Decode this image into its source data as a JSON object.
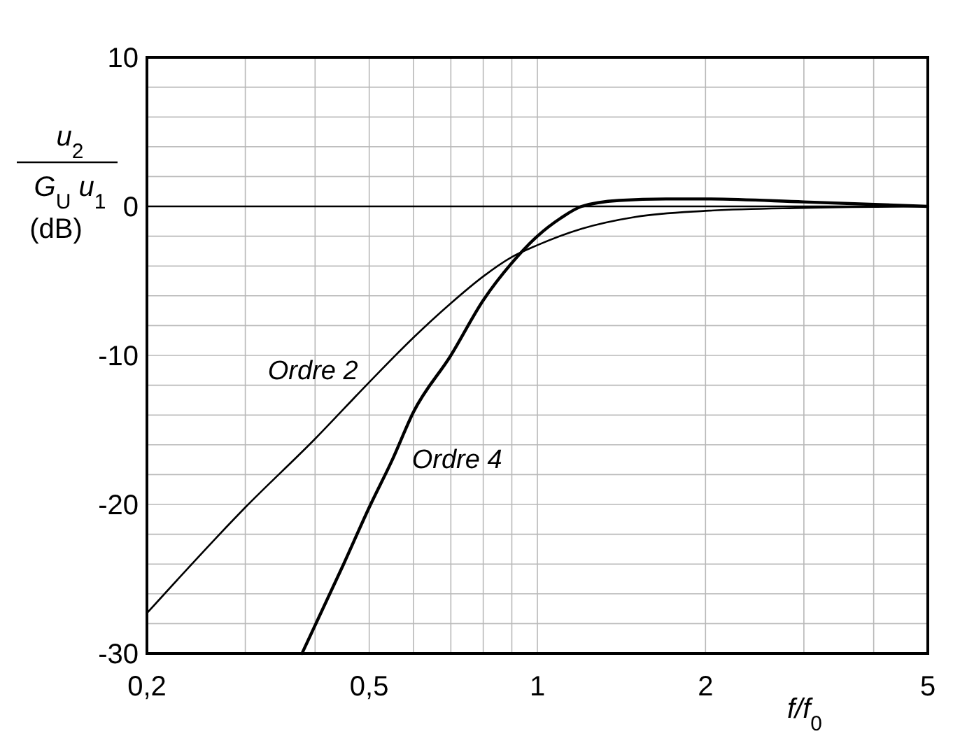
{
  "chart_data": {
    "type": "line",
    "ylabel": "u$_{2}$ G$_{U}$ u$_{1}$ (dB)",
    "xlabel": "f/f$_{0}$",
    "log": "x",
    "xlim": [
      0.2,
      5
    ],
    "xticks": [
      {
        "value": 0.2,
        "label": "0,2"
      },
      {
        "value": 0.3,
        "label": null
      },
      {
        "value": 0.4,
        "label": null
      },
      {
        "value": 0.5,
        "label": "0,5"
      },
      {
        "value": 0.6,
        "label": null
      },
      {
        "value": 0.7,
        "label": null
      },
      {
        "value": 0.8,
        "label": null
      },
      {
        "value": 0.9,
        "label": null
      },
      1,
      2,
      {
        "value": 3,
        "label": null
      },
      {
        "value": 4,
        "label": null
      },
      5
    ],
    "ylim": [
      -30,
      10
    ],
    "yticks": [
      -30,
      {
        "value": -28,
        "label": null
      },
      {
        "value": -26,
        "label": null
      },
      {
        "value": -24,
        "label": null
      },
      {
        "value": -22,
        "label": null
      },
      -20,
      {
        "value": -18,
        "label": null
      },
      {
        "value": -16,
        "label": null
      },
      {
        "value": -14,
        "label": null
      },
      {
        "value": -12,
        "label": null
      },
      -10,
      {
        "value": -8,
        "label": null
      },
      {
        "value": -6,
        "label": null
      },
      {
        "value": -4,
        "label": null
      },
      {
        "value": -2,
        "label": null
      },
      0,
      {
        "value": 2,
        "label": null
      },
      {
        "value": 4,
        "label": null
      },
      {
        "value": 6,
        "label": null
      },
      {
        "value": 8,
        "label": null
      },
      10
    ],
    "grid": true,
    "line_style": "solid",
    "ref_lines": [
      {
        "axis": "y",
        "value": 0,
        "color": "#000000"
      }
    ],
    "series": [
      {
        "name": "Ordre 2",
        "color": "#000000",
        "x": [
          0.2,
          0.3,
          0.4,
          0.5,
          0.6,
          0.7,
          0.8,
          0.9,
          1,
          1.2,
          1.5,
          2,
          3,
          5
        ],
        "values": [
          -27.3,
          -20.2,
          -15.6,
          -11.8,
          -8.8,
          -6.5,
          -4.7,
          -3.4,
          -2.6,
          -1.5,
          -0.7,
          -0.3,
          -0.1,
          0
        ]
      },
      {
        "name": "Ordre 4",
        "color": "#000000",
        "x": [
          0.379,
          0.45,
          0.5,
          0.55,
          0.6,
          0.7,
          0.8,
          0.9,
          1,
          1.1,
          1.2,
          1.4,
          1.7,
          2,
          3,
          5
        ],
        "values": [
          -30,
          -24,
          -20.2,
          -17,
          -13.8,
          -10,
          -6.3,
          -3.8,
          -2,
          -0.8,
          0,
          0.4,
          0.5,
          0.5,
          0.3,
          0
        ]
      }
    ]
  }
}
